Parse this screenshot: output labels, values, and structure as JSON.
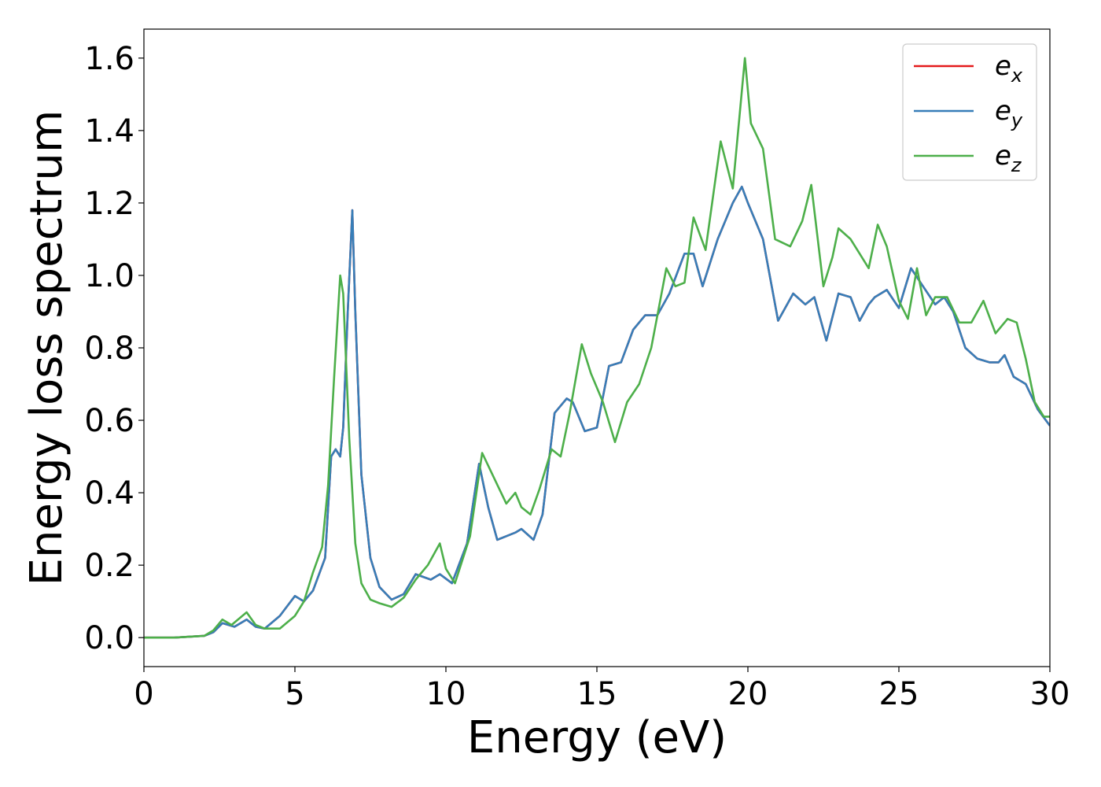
{
  "chart_data": {
    "type": "line",
    "xlabel": "Energy (eV)",
    "ylabel": "Energy loss spectrum",
    "xlim": [
      0,
      30
    ],
    "ylim": [
      -0.08,
      1.68
    ],
    "xticks": [
      0,
      5,
      10,
      15,
      20,
      25,
      30
    ],
    "yticks": [
      0.0,
      0.2,
      0.4,
      0.6,
      0.8,
      1.0,
      1.2,
      1.4,
      1.6
    ],
    "xtick_labels": [
      "0",
      "5",
      "10",
      "15",
      "20",
      "25",
      "30"
    ],
    "ytick_labels": [
      "0.0",
      "0.2",
      "0.4",
      "0.6",
      "0.8",
      "1.0",
      "1.2",
      "1.4",
      "1.6"
    ],
    "grid": false,
    "legend_position": "top-right",
    "series": [
      {
        "name": "e",
        "sub": "x",
        "color": "#e41a1c",
        "x": [
          0,
          1,
          2,
          2.3,
          2.6,
          3.0,
          3.4,
          3.7,
          4.0,
          4.5,
          5.0,
          5.3,
          5.6,
          6.0,
          6.2,
          6.35,
          6.5,
          6.6,
          6.75,
          6.9,
          7.0,
          7.2,
          7.5,
          7.8,
          8.2,
          8.6,
          9.0,
          9.5,
          9.8,
          10.2,
          10.7,
          11.1,
          11.4,
          11.7,
          12.0,
          12.3,
          12.5,
          12.9,
          13.2,
          13.6,
          14.0,
          14.2,
          14.6,
          15.0,
          15.4,
          15.8,
          16.2,
          16.6,
          17.0,
          17.4,
          17.9,
          18.2,
          18.5,
          19.0,
          19.5,
          19.8,
          20.0,
          20.5,
          21.0,
          21.5,
          21.9,
          22.2,
          22.6,
          23.0,
          23.4,
          23.7,
          24.0,
          24.2,
          24.6,
          25.0,
          25.4,
          25.8,
          26.2,
          26.5,
          26.8,
          27.2,
          27.6,
          28.0,
          28.3,
          28.5,
          28.8,
          29.2,
          29.6,
          30.0
        ],
        "y": [
          0.0,
          0.0,
          0.005,
          0.015,
          0.04,
          0.03,
          0.05,
          0.03,
          0.025,
          0.06,
          0.115,
          0.1,
          0.13,
          0.22,
          0.5,
          0.52,
          0.5,
          0.58,
          0.9,
          1.18,
          0.9,
          0.45,
          0.22,
          0.14,
          0.105,
          0.12,
          0.175,
          0.16,
          0.175,
          0.15,
          0.26,
          0.48,
          0.36,
          0.27,
          0.28,
          0.29,
          0.3,
          0.27,
          0.34,
          0.62,
          0.66,
          0.65,
          0.57,
          0.58,
          0.75,
          0.76,
          0.85,
          0.89,
          0.89,
          0.95,
          1.06,
          1.06,
          0.97,
          1.1,
          1.2,
          1.245,
          1.2,
          1.1,
          0.875,
          0.95,
          0.92,
          0.94,
          0.82,
          0.95,
          0.94,
          0.875,
          0.92,
          0.94,
          0.96,
          0.91,
          1.02,
          0.97,
          0.92,
          0.94,
          0.9,
          0.8,
          0.77,
          0.76,
          0.76,
          0.78,
          0.72,
          0.7,
          0.63,
          0.585
        ]
      },
      {
        "name": "e",
        "sub": "y",
        "color": "#377eb8",
        "x": [
          0,
          1,
          2,
          2.3,
          2.6,
          3.0,
          3.4,
          3.7,
          4.0,
          4.5,
          5.0,
          5.3,
          5.6,
          6.0,
          6.2,
          6.35,
          6.5,
          6.6,
          6.75,
          6.9,
          7.0,
          7.2,
          7.5,
          7.8,
          8.2,
          8.6,
          9.0,
          9.5,
          9.8,
          10.2,
          10.7,
          11.1,
          11.4,
          11.7,
          12.0,
          12.3,
          12.5,
          12.9,
          13.2,
          13.6,
          14.0,
          14.2,
          14.6,
          15.0,
          15.4,
          15.8,
          16.2,
          16.6,
          17.0,
          17.4,
          17.9,
          18.2,
          18.5,
          19.0,
          19.5,
          19.8,
          20.0,
          20.5,
          21.0,
          21.5,
          21.9,
          22.2,
          22.6,
          23.0,
          23.4,
          23.7,
          24.0,
          24.2,
          24.6,
          25.0,
          25.4,
          25.8,
          26.2,
          26.5,
          26.8,
          27.2,
          27.6,
          28.0,
          28.3,
          28.5,
          28.8,
          29.2,
          29.6,
          30.0
        ],
        "y": [
          0.0,
          0.0,
          0.005,
          0.015,
          0.04,
          0.03,
          0.05,
          0.03,
          0.025,
          0.06,
          0.115,
          0.1,
          0.13,
          0.22,
          0.5,
          0.52,
          0.5,
          0.58,
          0.9,
          1.18,
          0.9,
          0.45,
          0.22,
          0.14,
          0.105,
          0.12,
          0.175,
          0.16,
          0.175,
          0.15,
          0.26,
          0.48,
          0.36,
          0.27,
          0.28,
          0.29,
          0.3,
          0.27,
          0.34,
          0.62,
          0.66,
          0.65,
          0.57,
          0.58,
          0.75,
          0.76,
          0.85,
          0.89,
          0.89,
          0.95,
          1.06,
          1.06,
          0.97,
          1.1,
          1.2,
          1.245,
          1.2,
          1.1,
          0.875,
          0.95,
          0.92,
          0.94,
          0.82,
          0.95,
          0.94,
          0.875,
          0.92,
          0.94,
          0.96,
          0.91,
          1.02,
          0.97,
          0.92,
          0.94,
          0.9,
          0.8,
          0.77,
          0.76,
          0.76,
          0.78,
          0.72,
          0.7,
          0.63,
          0.585
        ]
      },
      {
        "name": "e",
        "sub": "z",
        "color": "#4daf4a",
        "x": [
          0,
          1,
          2,
          2.3,
          2.6,
          2.9,
          3.4,
          3.7,
          4.0,
          4.5,
          5.0,
          5.3,
          5.6,
          5.9,
          6.1,
          6.3,
          6.5,
          6.6,
          6.8,
          7.0,
          7.2,
          7.5,
          7.8,
          8.2,
          8.6,
          9.0,
          9.4,
          9.8,
          10.0,
          10.3,
          10.8,
          11.2,
          11.6,
          12.0,
          12.3,
          12.5,
          12.8,
          13.1,
          13.5,
          13.8,
          14.1,
          14.5,
          14.8,
          15.2,
          15.6,
          16.0,
          16.4,
          16.8,
          17.3,
          17.6,
          17.9,
          18.2,
          18.6,
          19.1,
          19.5,
          19.9,
          20.1,
          20.5,
          20.9,
          21.4,
          21.8,
          22.1,
          22.5,
          22.8,
          23.0,
          23.4,
          23.7,
          24.0,
          24.3,
          24.6,
          25.0,
          25.3,
          25.6,
          25.9,
          26.2,
          26.6,
          27.0,
          27.4,
          27.8,
          28.2,
          28.6,
          28.9,
          29.2,
          29.5,
          29.8,
          30.0
        ],
        "y": [
          0.0,
          0.0,
          0.005,
          0.02,
          0.05,
          0.035,
          0.07,
          0.035,
          0.025,
          0.025,
          0.06,
          0.1,
          0.18,
          0.25,
          0.42,
          0.72,
          1.0,
          0.95,
          0.55,
          0.26,
          0.15,
          0.105,
          0.095,
          0.085,
          0.11,
          0.16,
          0.2,
          0.26,
          0.19,
          0.15,
          0.28,
          0.51,
          0.44,
          0.37,
          0.4,
          0.36,
          0.34,
          0.41,
          0.52,
          0.5,
          0.62,
          0.81,
          0.73,
          0.65,
          0.54,
          0.65,
          0.7,
          0.8,
          1.02,
          0.97,
          0.98,
          1.16,
          1.07,
          1.37,
          1.24,
          1.6,
          1.42,
          1.35,
          1.1,
          1.08,
          1.15,
          1.25,
          0.97,
          1.05,
          1.13,
          1.1,
          1.06,
          1.02,
          1.14,
          1.08,
          0.93,
          0.88,
          1.02,
          0.89,
          0.94,
          0.94,
          0.87,
          0.87,
          0.93,
          0.84,
          0.88,
          0.87,
          0.77,
          0.65,
          0.61,
          0.61
        ]
      }
    ]
  }
}
